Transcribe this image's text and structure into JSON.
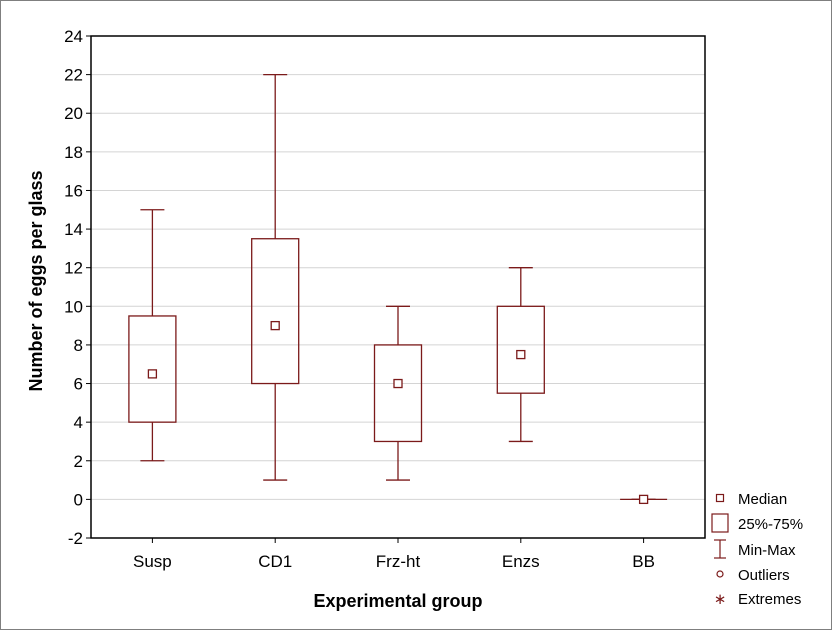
{
  "chart_data": {
    "type": "boxplot",
    "xlabel": "Experimental group",
    "ylabel": "Number of eggs per glass",
    "ylim": [
      -2,
      24
    ],
    "yticks": [
      -2,
      0,
      2,
      4,
      6,
      8,
      10,
      12,
      14,
      16,
      18,
      20,
      22,
      24
    ],
    "grid": true,
    "legend_position": "bottom-right outside",
    "categories": [
      "Susp",
      "CD1",
      "Frz-ht",
      "Enzs",
      "BB"
    ],
    "series": [
      {
        "category": "Susp",
        "median": 6.5,
        "q1": 4.0,
        "q3": 9.5,
        "min": 2,
        "max": 15
      },
      {
        "category": "CD1",
        "median": 9.0,
        "q1": 6.0,
        "q3": 13.5,
        "min": 1,
        "max": 22
      },
      {
        "category": "Frz-ht",
        "median": 6.0,
        "q1": 3.0,
        "q3": 8.0,
        "min": 1,
        "max": 10
      },
      {
        "category": "Enzs",
        "median": 7.5,
        "q1": 5.5,
        "q3": 10.0,
        "min": 3,
        "max": 12
      },
      {
        "category": "BB",
        "median": 0.0,
        "q1": 0.0,
        "q3": 0.0,
        "min": 0,
        "max": 0
      }
    ],
    "legend": [
      {
        "symbol": "median-square",
        "label": "Median"
      },
      {
        "symbol": "box",
        "label": "25%-75%"
      },
      {
        "symbol": "whisker",
        "label": "Min-Max"
      },
      {
        "symbol": "circle",
        "label": "Outliers"
      },
      {
        "symbol": "asterisk",
        "label": "Extremes"
      }
    ],
    "colors": {
      "box": "#7b1a1a",
      "grid": "#d4d4d4",
      "axis": "#000000"
    }
  }
}
